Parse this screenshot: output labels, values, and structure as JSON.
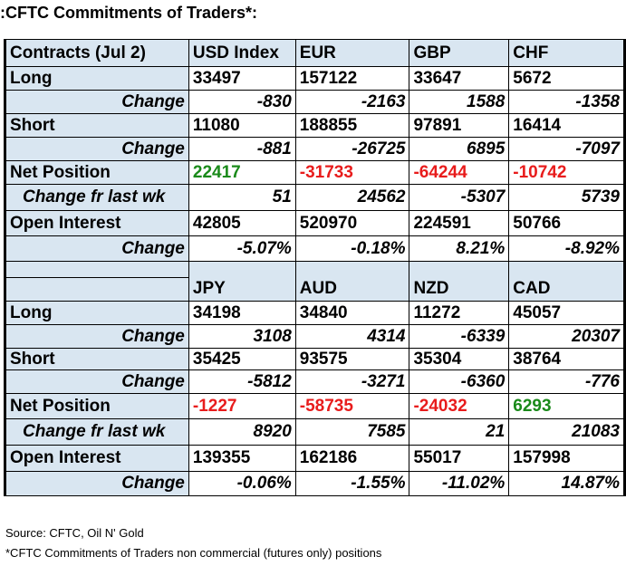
{
  "title": {
    "lead": ":",
    "text": "CFTC Commitments of Traders*:"
  },
  "section1": {
    "header_label": "Contracts (Jul 2)",
    "currencies": [
      "USD Index",
      "EUR",
      "GBP",
      "CHF"
    ],
    "long_label": "Long",
    "long": [
      "33497",
      "157122",
      "33647",
      "5672"
    ],
    "long_change_label": "Change",
    "long_change": [
      "-830",
      "-2163",
      "1588",
      "-1358"
    ],
    "short_label": "Short",
    "short": [
      "11080",
      "188855",
      "97891",
      "16414"
    ],
    "short_change_label": "Change",
    "short_change": [
      "-881",
      "-26725",
      "6895",
      "-7097"
    ],
    "net_label": "Net Position",
    "net": [
      "22417",
      "-31733",
      "-64244",
      "-10742"
    ],
    "net_change_label": "Change fr last wk",
    "net_change": [
      "51",
      "24562",
      "-5307",
      "5739"
    ],
    "oi_label": "Open Interest",
    "oi": [
      "42805",
      "520970",
      "224591",
      "50766"
    ],
    "oi_change_label": "Change",
    "oi_change": [
      "-5.07%",
      "-0.18%",
      "8.21%",
      "-8.92%"
    ]
  },
  "section2": {
    "currencies": [
      "JPY",
      "AUD",
      "NZD",
      "CAD"
    ],
    "long_label": "Long",
    "long": [
      "34198",
      "34840",
      "11272",
      "45057"
    ],
    "long_change_label": "Change",
    "long_change": [
      "3108",
      "4314",
      "-6339",
      "20307"
    ],
    "short_label": "Short",
    "short": [
      "35425",
      "93575",
      "35304",
      "38764"
    ],
    "short_change_label": "Change",
    "short_change": [
      "-5812",
      "-3271",
      "-6360",
      "-776"
    ],
    "net_label": "Net Position",
    "net": [
      "-1227",
      "-58735",
      "-24032",
      "6293"
    ],
    "net_change_label": "Change fr last wk",
    "net_change": [
      "8920",
      "7585",
      "21",
      "21083"
    ],
    "oi_label": "Open Interest",
    "oi": [
      "139355",
      "162186",
      "55017",
      "157998"
    ],
    "oi_change_label": "Change",
    "oi_change": [
      "-0.06%",
      "-1.55%",
      "-11.02%",
      "14.87%"
    ]
  },
  "colors": {
    "label_bg": "#d9e6f1",
    "positive": "#1a8a1a",
    "negative": "#e81c1c"
  },
  "footer": {
    "source": "Source: CFTC, Oil N' Gold",
    "note": "*CFTC Commitments of Traders non commercial (futures only) positions"
  }
}
